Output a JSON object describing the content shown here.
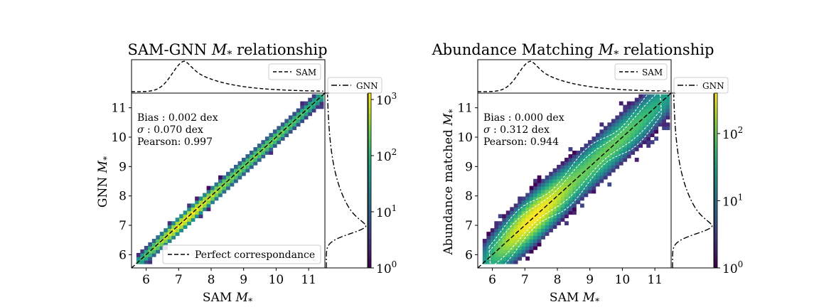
{
  "chart_data": [
    {
      "type": "heatmap",
      "title": "SAM-GNN M* relationship",
      "title_prefix": "SAM-GNN ",
      "title_suffix": " relationship",
      "xlabel": "SAM M*",
      "ylabel": "GNN M*",
      "xlabel_text": "SAM ",
      "ylabel_text": "GNN ",
      "xlim": [
        5.55,
        11.5
      ],
      "ylim": [
        5.55,
        11.5
      ],
      "xticks": [
        "6",
        "7",
        "8",
        "9",
        "10",
        "11"
      ],
      "yticks": [
        "6",
        "7",
        "8",
        "9",
        "10",
        "11"
      ],
      "stats": {
        "bias": "Bias : 0.002 dex",
        "sigma": ": 0.070 dex",
        "pearson": "Pearson:  0.997"
      },
      "legend_main": "Perfect correspondance",
      "legend_top": "SAM",
      "legend_right": "GNN",
      "colorbar": {
        "min": 1,
        "max": 1300,
        "log": true,
        "tick_labels": [
          "10",
          "10",
          "10",
          "10"
        ],
        "tick_exponents": [
          "0",
          "1",
          "2",
          "3"
        ]
      },
      "scatter_sigma": 0.07,
      "colormap": "viridis"
    },
    {
      "type": "heatmap",
      "title": "Abundance Matching M* relationship",
      "title_prefix": "Abundance Matching ",
      "title_suffix": " relationship",
      "xlabel": "SAM M*",
      "ylabel": "Abundance matched M*",
      "xlabel_text": "SAM ",
      "ylabel_text": "Abundance matched ",
      "xlim": [
        5.55,
        11.5
      ],
      "ylim": [
        5.55,
        11.5
      ],
      "xticks": [
        "6",
        "7",
        "8",
        "9",
        "10",
        "11"
      ],
      "yticks": [
        "6",
        "7",
        "8",
        "9",
        "10",
        "11"
      ],
      "stats": {
        "bias": "Bias : 0.000 dex",
        "sigma": ": 0.312 dex",
        "pearson": "Pearson:  0.944"
      },
      "legend_top": "SAM",
      "legend_right": "GNN",
      "colorbar": {
        "min": 1,
        "max": 400,
        "log": true,
        "tick_labels": [
          "10",
          "10",
          "10"
        ],
        "tick_exponents": [
          "0",
          "1",
          "2"
        ]
      },
      "scatter_sigma": 0.312,
      "colormap": "viridis"
    }
  ]
}
